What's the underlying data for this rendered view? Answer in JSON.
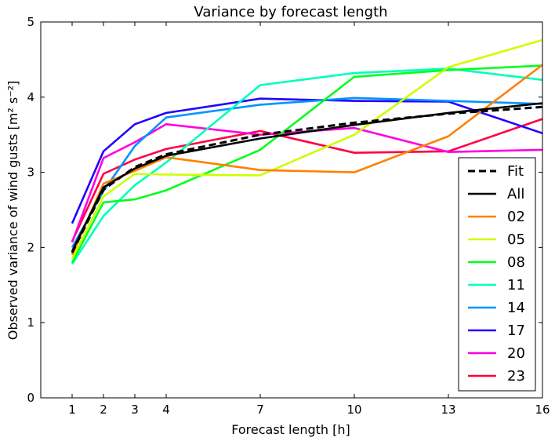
{
  "chart_data": {
    "type": "line",
    "title": "Variance by forecast length",
    "xlabel": "Forecast length [h]",
    "ylabel": "Observed variance of wind gusts [m² s⁻²]",
    "xlim": [
      0,
      16
    ],
    "ylim": [
      0,
      5
    ],
    "xticks": [
      1,
      2,
      3,
      4,
      7,
      10,
      13,
      16
    ],
    "yticks": [
      0,
      1,
      2,
      3,
      4,
      5
    ],
    "grid": false,
    "legend_position": "lower-right",
    "x": [
      1,
      2,
      3,
      4,
      7,
      10,
      13,
      16
    ],
    "series": [
      {
        "name": "Fit",
        "color": "#000000",
        "dashed": true,
        "values": [
          1.93,
          2.77,
          3.07,
          3.24,
          3.5,
          3.66,
          3.78,
          3.87
        ]
      },
      {
        "name": "All",
        "color": "#000000",
        "dashed": false,
        "values": [
          1.95,
          2.8,
          3.05,
          3.22,
          3.45,
          3.63,
          3.79,
          3.92
        ]
      },
      {
        "name": "02",
        "color": "#ff8000",
        "dashed": false,
        "values": [
          1.9,
          2.85,
          3.02,
          3.2,
          3.03,
          3.0,
          3.48,
          4.43
        ]
      },
      {
        "name": "05",
        "color": "#ccff00",
        "dashed": false,
        "values": [
          1.85,
          2.68,
          2.98,
          2.97,
          2.96,
          3.5,
          4.4,
          4.76
        ]
      },
      {
        "name": "08",
        "color": "#00ff1a",
        "dashed": false,
        "values": [
          1.8,
          2.6,
          2.64,
          2.76,
          3.3,
          4.27,
          4.36,
          4.42
        ]
      },
      {
        "name": "11",
        "color": "#00ffbb",
        "dashed": false,
        "values": [
          1.78,
          2.42,
          2.83,
          3.13,
          4.16,
          4.32,
          4.38,
          4.23
        ]
      },
      {
        "name": "14",
        "color": "#0095ff",
        "dashed": false,
        "values": [
          2.0,
          2.75,
          3.35,
          3.73,
          3.9,
          3.99,
          3.95,
          3.91
        ]
      },
      {
        "name": "17",
        "color": "#2200ff",
        "dashed": false,
        "values": [
          2.32,
          3.28,
          3.64,
          3.79,
          3.98,
          3.95,
          3.94,
          3.52
        ]
      },
      {
        "name": "20",
        "color": "#ff00e0",
        "dashed": false,
        "values": [
          2.07,
          3.19,
          3.4,
          3.64,
          3.5,
          3.59,
          3.27,
          3.3
        ]
      },
      {
        "name": "23",
        "color": "#ff0044",
        "dashed": false,
        "values": [
          2.08,
          2.98,
          3.17,
          3.31,
          3.55,
          3.26,
          3.28,
          3.71
        ]
      }
    ]
  }
}
